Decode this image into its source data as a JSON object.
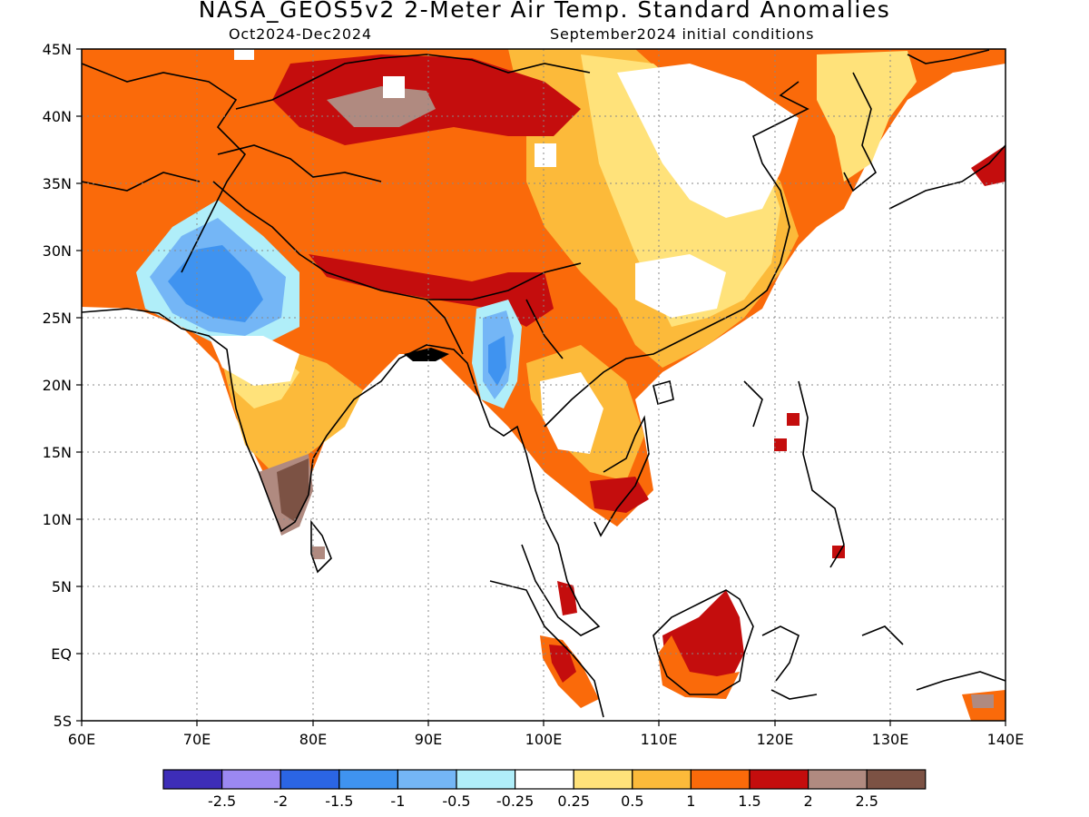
{
  "header": {
    "title": "NASA_GEOS5v2 2-Meter Air Temp. Standard Anomalies",
    "period": "Oct2024-Dec2024",
    "initial": "September2024 initial conditions"
  },
  "map": {
    "lat_labels": [
      "45N",
      "40N",
      "35N",
      "30N",
      "25N",
      "20N",
      "15N",
      "10N",
      "5N",
      "EQ",
      "5S"
    ],
    "lon_labels": [
      "60E",
      "70E",
      "80E",
      "90E",
      "100E",
      "110E",
      "120E",
      "130E",
      "140E"
    ]
  },
  "colorbar": {
    "colors": [
      "#3d2db8",
      "#9b88f2",
      "#2b65e4",
      "#3f93f0",
      "#74b6f6",
      "#b0eef9",
      "#ffffff",
      "#ffe27a",
      "#fcba3a",
      "#fa6a0a",
      "#c40d0d",
      "#b08a80",
      "#7c5244"
    ],
    "labels": [
      "-2.5",
      "-2",
      "-1.5",
      "-1",
      "-0.5",
      "-0.25",
      "0.25",
      "0.5",
      "1",
      "1.5",
      "2",
      "2.5"
    ]
  },
  "legend_colors": {
    "neg_strong": "#2b65e4",
    "neg": "#3f93f0",
    "neg_light": "#74b6f6",
    "neg_faint": "#b0eef9",
    "pos_faint": "#ffe27a",
    "pos_light": "#fcba3a",
    "pos": "#fa6a0a",
    "pos_strong": "#c40d0d",
    "pos_extreme": "#b08a80",
    "pos_max": "#7c5244"
  }
}
